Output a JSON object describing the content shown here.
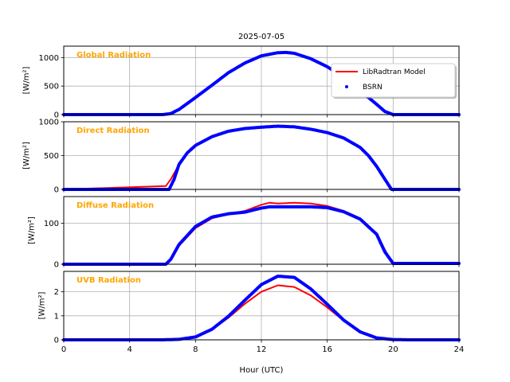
{
  "figure": {
    "title": "2025-07-05",
    "xlabel": "Hour (UTC)",
    "title_color": "#FFA500",
    "model_color": "#FF0000",
    "obs_color": "#0000FF"
  },
  "legend": {
    "model_label": "LibRadtran Model",
    "obs_label": "BSRN"
  },
  "chart_data": [
    {
      "type": "line",
      "title": "Global Radiation",
      "ylabel": "[W/m²]",
      "xlim": [
        0,
        24
      ],
      "ylim": [
        0,
        1200
      ],
      "xticks": [
        0,
        4,
        8,
        12,
        16,
        20,
        24
      ],
      "yticks": [
        0,
        500,
        1000
      ],
      "grid": true,
      "legend_position": "upper-right",
      "series": [
        {
          "name": "LibRadtran Model",
          "x": [
            0,
            6.0,
            6.5,
            7,
            8,
            9,
            10,
            11,
            12,
            13,
            13.5,
            14,
            15,
            16,
            17,
            18,
            19,
            19.5,
            20,
            24
          ],
          "y": [
            0,
            0,
            20,
            95,
            310,
            520,
            740,
            910,
            1030,
            1085,
            1090,
            1075,
            980,
            840,
            650,
            420,
            180,
            60,
            0,
            0
          ]
        },
        {
          "name": "BSRN",
          "x": [
            0,
            6.0,
            6.5,
            7,
            8,
            9,
            10,
            11,
            12,
            13,
            13.5,
            14,
            15,
            16,
            17,
            18,
            19,
            19.5,
            20,
            24
          ],
          "y": [
            0,
            0,
            18,
            90,
            300,
            515,
            735,
            905,
            1030,
            1085,
            1090,
            1075,
            980,
            840,
            650,
            420,
            180,
            55,
            0,
            0
          ]
        }
      ]
    },
    {
      "type": "line",
      "title": "Direct Radiation",
      "ylabel": "[W/m²]",
      "xlim": [
        0,
        24
      ],
      "ylim": [
        0,
        1000
      ],
      "xticks": [
        0,
        4,
        8,
        12,
        16,
        20,
        24
      ],
      "yticks": [
        0,
        500,
        1000
      ],
      "grid": true,
      "series": [
        {
          "name": "LibRadtran Model",
          "x": [
            0,
            6.2,
            6.5,
            7,
            7.5,
            8,
            9,
            10,
            11,
            12,
            13,
            14,
            15,
            16,
            17,
            18,
            18.5,
            19,
            19.5,
            19.9,
            24
          ],
          "y": [
            0,
            50,
            150,
            370,
            540,
            650,
            780,
            860,
            900,
            920,
            930,
            920,
            890,
            840,
            760,
            620,
            500,
            340,
            150,
            0,
            0
          ]
        },
        {
          "name": "BSRN",
          "x": [
            0,
            6.4,
            6.7,
            7,
            7.5,
            8,
            9,
            10,
            11,
            12,
            13,
            14,
            15,
            16,
            17,
            18,
            18.5,
            19,
            19.5,
            19.9,
            24
          ],
          "y": [
            0,
            0,
            150,
            370,
            540,
            650,
            780,
            860,
            900,
            920,
            935,
            925,
            890,
            840,
            760,
            620,
            500,
            340,
            150,
            0,
            0
          ]
        }
      ]
    },
    {
      "type": "line",
      "title": "Diffuse Radiation",
      "ylabel": "[W/m²]",
      "xlim": [
        0,
        24
      ],
      "ylim": [
        0,
        165
      ],
      "xticks": [
        0,
        4,
        8,
        12,
        16,
        20,
        24
      ],
      "yticks": [
        0,
        100
      ],
      "grid": true,
      "series": [
        {
          "name": "LibRadtran Model",
          "x": [
            0,
            6.2,
            6.5,
            7,
            8,
            9,
            10,
            11,
            12,
            12.5,
            13,
            14,
            15,
            16,
            17,
            18,
            19,
            19.5,
            20,
            24
          ],
          "y": [
            0,
            0,
            10,
            45,
            88,
            112,
            122,
            130,
            145,
            150,
            148,
            150,
            148,
            142,
            130,
            112,
            75,
            35,
            0,
            0
          ]
        },
        {
          "name": "BSRN",
          "x": [
            0,
            6.2,
            6.5,
            7,
            8,
            9,
            10,
            11,
            12,
            12.5,
            13,
            14,
            15,
            16,
            17,
            18,
            19,
            19.5,
            20,
            24
          ],
          "y": [
            0,
            0,
            12,
            48,
            92,
            115,
            123,
            127,
            137,
            140,
            140,
            140,
            140,
            138,
            128,
            110,
            73,
            30,
            2,
            2
          ]
        }
      ]
    },
    {
      "type": "line",
      "title": "UVB Radiation",
      "ylabel": "[W/m²]",
      "xlim": [
        0,
        24
      ],
      "ylim": [
        0,
        2.85
      ],
      "xticks": [
        0,
        4,
        8,
        12,
        16,
        20,
        24
      ],
      "yticks": [
        0,
        1,
        2
      ],
      "grid": true,
      "series": [
        {
          "name": "LibRadtran Model",
          "x": [
            0,
            6,
            7,
            8,
            9,
            10,
            11,
            12,
            13,
            14,
            15,
            16,
            17,
            18,
            19,
            20,
            21,
            24
          ],
          "y": [
            0,
            0,
            0.02,
            0.12,
            0.42,
            0.92,
            1.5,
            2.0,
            2.27,
            2.2,
            1.85,
            1.35,
            0.8,
            0.35,
            0.1,
            0.02,
            0,
            0
          ]
        },
        {
          "name": "BSRN",
          "x": [
            0,
            6,
            7,
            8,
            9,
            10,
            11,
            12,
            13,
            14,
            15,
            16,
            17,
            18,
            19,
            20,
            21,
            24
          ],
          "y": [
            0,
            0,
            0.02,
            0.12,
            0.44,
            0.98,
            1.65,
            2.3,
            2.65,
            2.6,
            2.12,
            1.48,
            0.82,
            0.33,
            0.08,
            0.01,
            0,
            0
          ]
        }
      ]
    }
  ]
}
